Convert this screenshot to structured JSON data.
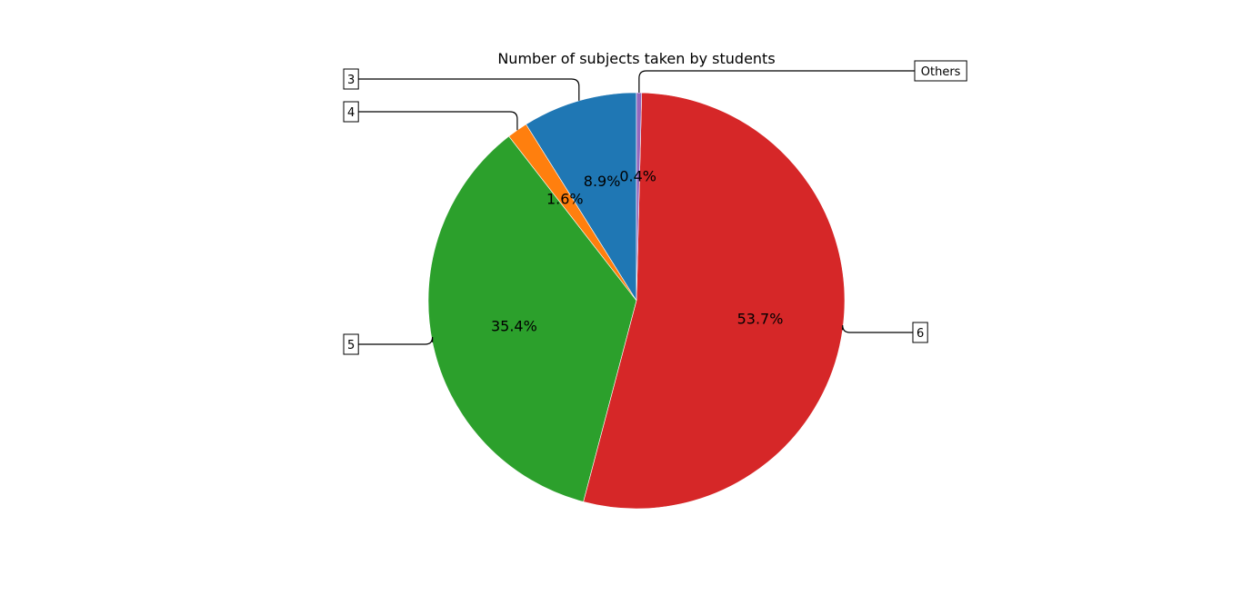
{
  "chart_data": {
    "type": "pie",
    "title": "Number of subjects taken by students",
    "labels": [
      "3",
      "4",
      "5",
      "6",
      "Others"
    ],
    "values": [
      8.9,
      1.6,
      35.4,
      53.7,
      0.4
    ],
    "percent_labels": [
      "8.9%",
      "1.6%",
      "35.4%",
      "53.7%",
      "0.4%"
    ],
    "colors": [
      "#1f77b4",
      "#ff7f0e",
      "#2ca02c",
      "#d62728",
      "#9467bd"
    ],
    "start_angle_deg": 90,
    "direction": "counterclockwise",
    "legend": "none"
  }
}
